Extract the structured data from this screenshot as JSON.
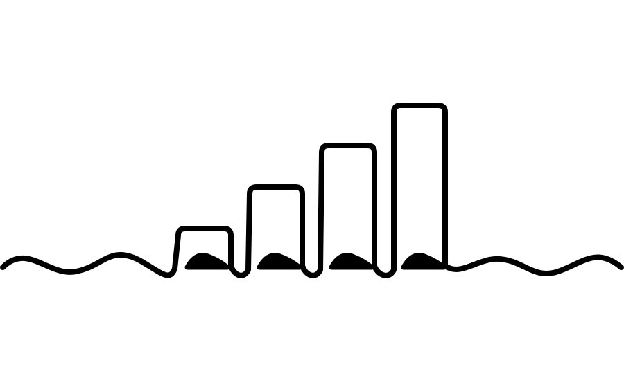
{
  "illustration": {
    "subject": "wave-line-bar-graph",
    "stroke_color": "#000000",
    "background_color": "#ffffff",
    "bar_count": 4,
    "relative_bar_heights": [
      1,
      2,
      3,
      4
    ],
    "icon_names": [
      "wave-line-icon",
      "rising-bars-icon",
      "small-wave-crest-icon"
    ]
  }
}
